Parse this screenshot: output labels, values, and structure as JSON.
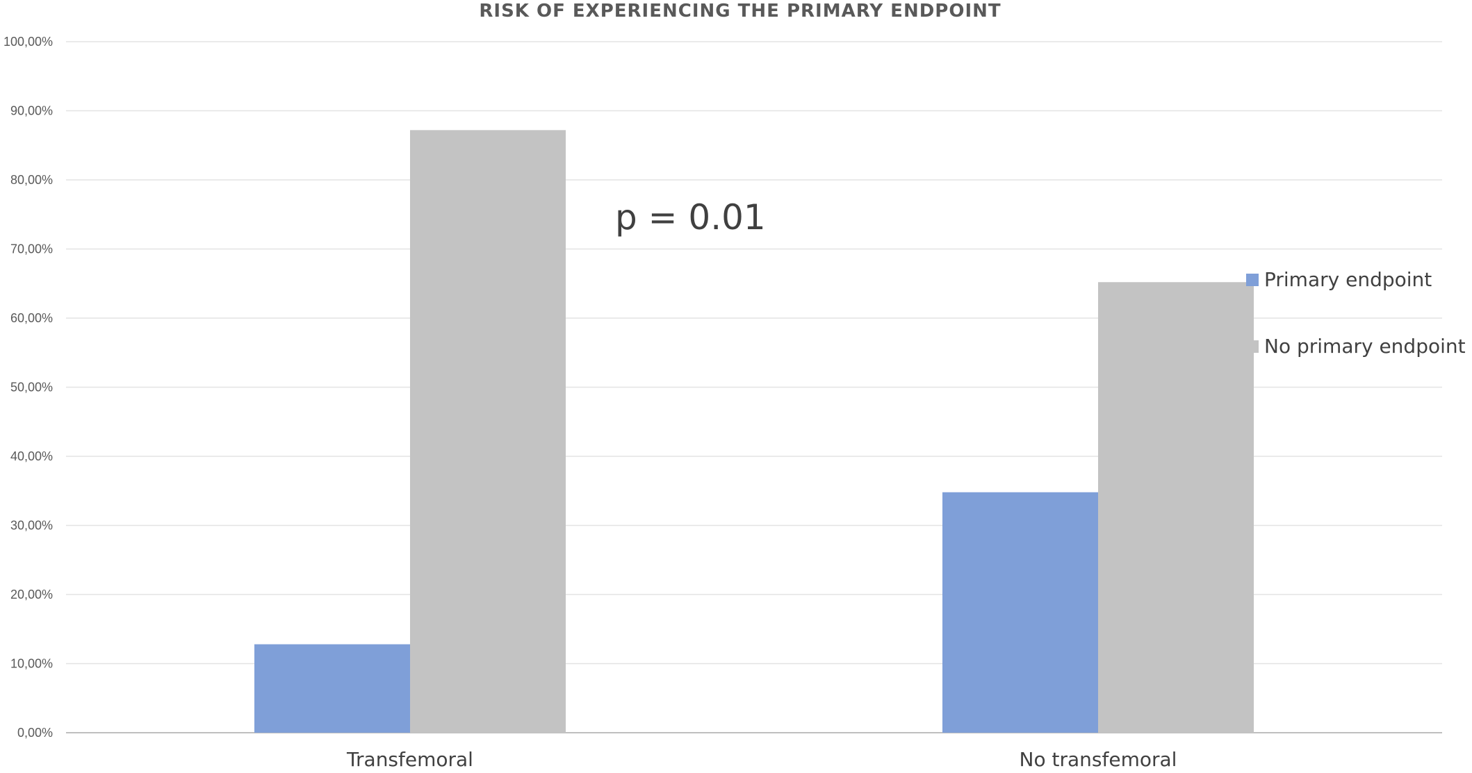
{
  "chart_data": {
    "type": "bar",
    "title": "RISK OF EXPERIENCING THE PRIMARY ENDPOINT",
    "categories": [
      "Transfemoral",
      "No transfemoral"
    ],
    "series": [
      {
        "name": "Primary endpoint",
        "values": [
          12.8,
          34.8
        ],
        "color": "#7f9fd8"
      },
      {
        "name": "No primary endpoint",
        "values": [
          87.2,
          65.2
        ],
        "color": "#c3c3c3"
      }
    ],
    "ylim": [
      0,
      100
    ],
    "yticks": [
      "0,00%",
      "10,00%",
      "20,00%",
      "30,00%",
      "40,00%",
      "50,00%",
      "60,00%",
      "70,00%",
      "80,00%",
      "90,00%",
      "100,00%"
    ],
    "annotation": "p = 0.01",
    "grid": true,
    "legend_position": "right"
  }
}
